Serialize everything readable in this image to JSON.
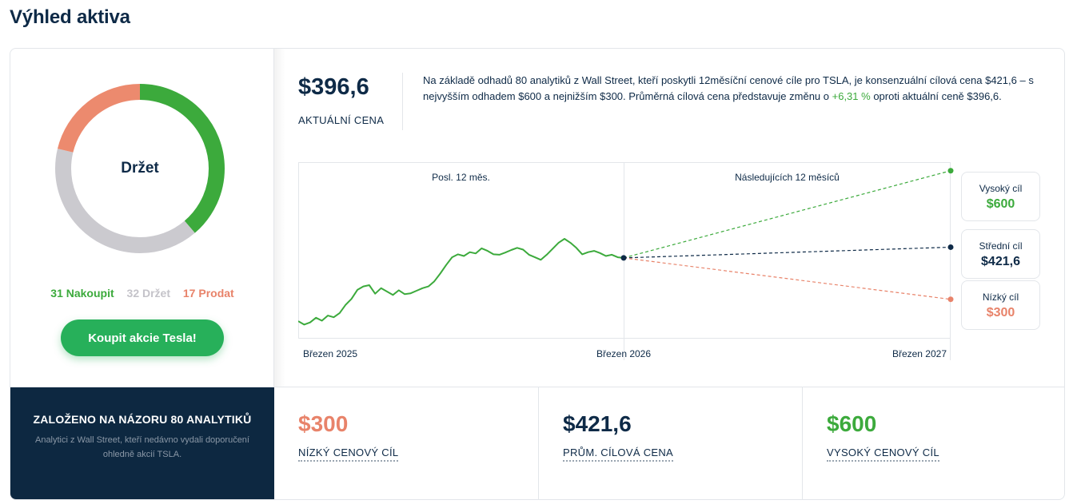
{
  "page_title": "Výhled aktiva",
  "consensus": {
    "label": "Držet",
    "counts": {
      "buy": "31 Nakoupit",
      "hold": "32 Držet",
      "sell": "17 Prodat"
    },
    "buy_button": "Koupit akcie Tesla!",
    "segments": [
      {
        "name": "Nakoupit",
        "value": 31,
        "color": "#3caa3c"
      },
      {
        "name": "Držet",
        "value": 32,
        "color": "#cbcacf"
      },
      {
        "name": "Prodat",
        "value": 17,
        "color": "#ec8a6e"
      }
    ]
  },
  "current_price": {
    "value": "$396,6",
    "caption": "AKTUÁLNÍ CENA"
  },
  "summary": {
    "part1": "Na základě odhadů 80 analytiků z Wall Street, kteří poskytli 12měsíční cenové cíle pro TSLA, je konsenzuální cílová cena $421,6 – s nejvyšším odhadem $600 a nejnižším $300. Průměrná cílová cena představuje změnu o ",
    "change": "+6,31 %",
    "part2": " oproti aktuální ceně $396,6."
  },
  "targets": {
    "high": {
      "label": "Vysoký cíl",
      "value": "$600"
    },
    "mid": {
      "label": "Střední cíl",
      "value": "$421,6"
    },
    "low": {
      "label": "Nízký cíl",
      "value": "$300"
    }
  },
  "bottom": {
    "title": "ZALOŽENO NA NÁZORU 80 ANALYTIKŮ",
    "subtitle": "Analytici z Wall Street, kteří nedávno vydali doporučení ohledně akcií TSLA.",
    "stats": [
      {
        "value": "$300",
        "caption": "NÍZKÝ CENOVÝ CÍL",
        "color": "#e8836a"
      },
      {
        "value": "$421,6",
        "caption": "PRŮM. CÍLOVÁ CENA",
        "color": "#0e2a47"
      },
      {
        "value": "$600",
        "caption": "VYSOKÝ CENOVÝ CÍL",
        "color": "#3caa3c"
      }
    ]
  },
  "chart_data": {
    "type": "line",
    "period_labels": [
      "Posl. 12 měs.",
      "Následujících 12 měsíců"
    ],
    "x_ticks": [
      "Březen 2025",
      "Březen 2026",
      "Březen 2027"
    ],
    "ylim": [
      210,
      620
    ],
    "history": {
      "color": "#3caa3c",
      "values": [
        249,
        241,
        246,
        257,
        250,
        262,
        258,
        268,
        287,
        301,
        322,
        330,
        333,
        313,
        326,
        318,
        310,
        321,
        312,
        314,
        320,
        326,
        330,
        342,
        360,
        380,
        398,
        405,
        401,
        410,
        407,
        419,
        413,
        405,
        404,
        409,
        415,
        420,
        416,
        404,
        398,
        392,
        404,
        418,
        432,
        441,
        432,
        420,
        405,
        410,
        413,
        408,
        401,
        404,
        398,
        396.6
      ]
    },
    "projections": [
      {
        "name": "Vysoký cíl",
        "from": 396.6,
        "to": 600,
        "color": "#3caa3c"
      },
      {
        "name": "Střední cíl",
        "from": 396.6,
        "to": 421.6,
        "color": "#0e2a47"
      },
      {
        "name": "Nízký cíl",
        "from": 396.6,
        "to": 300,
        "color": "#e8836a"
      }
    ]
  }
}
